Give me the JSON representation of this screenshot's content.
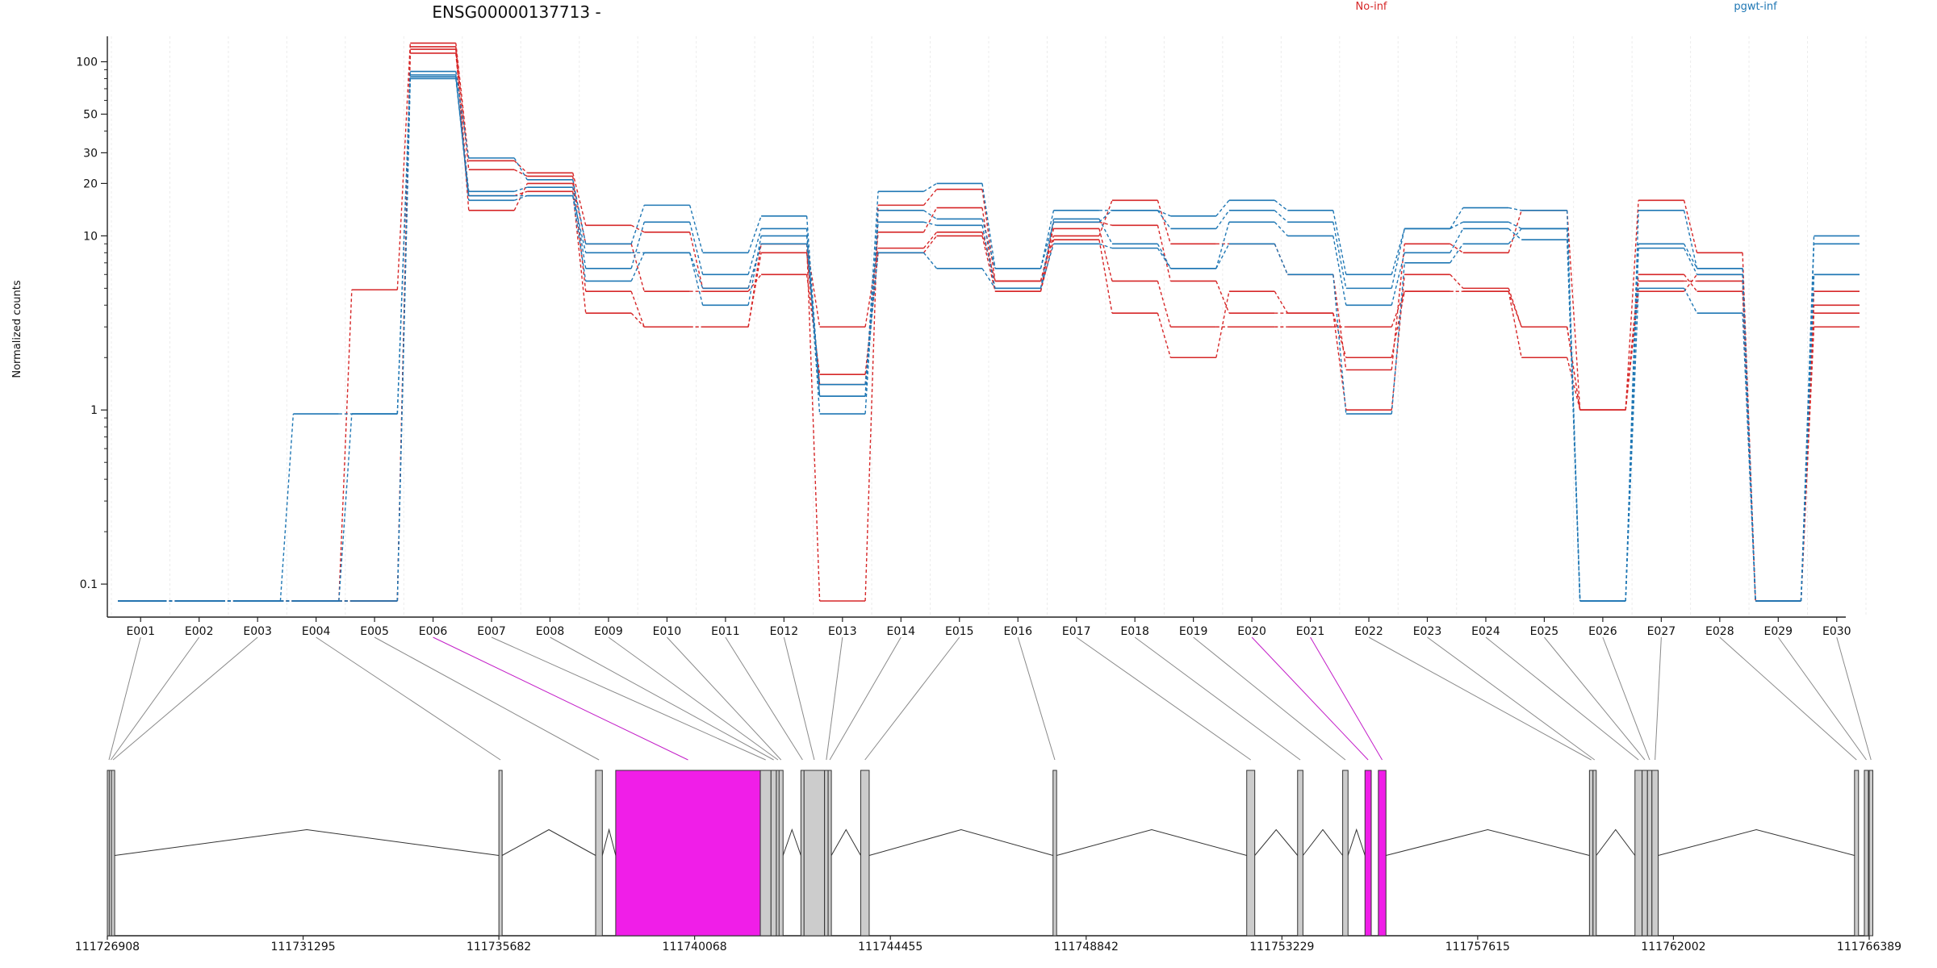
{
  "chart_data": {
    "type": "line",
    "title": "ENSG00000137713 -",
    "ylabel": "Normalized counts",
    "y_scale": "log",
    "y_ticks": [
      0.1,
      1,
      10,
      20,
      30,
      50,
      100
    ],
    "y_tick_labels": [
      "0.1",
      "1",
      "10",
      "20",
      "30",
      "50",
      "100"
    ],
    "ylim": [
      0.08,
      140
    ],
    "grid": "vertical",
    "legend": [
      {
        "name": "No-inf",
        "color": "#d62728"
      },
      {
        "name": "pgwt-inf",
        "color": "#1f77b4"
      }
    ],
    "categories": [
      "E001",
      "E002",
      "E003",
      "E004",
      "E005",
      "E006",
      "E007",
      "E008",
      "E009",
      "E010",
      "E011",
      "E012",
      "E013",
      "E014",
      "E015",
      "E016",
      "E017",
      "E018",
      "E019",
      "E020",
      "E021",
      "E022",
      "E023",
      "E024",
      "E025",
      "E026",
      "E027",
      "E028",
      "E029",
      "E030"
    ],
    "highlighted_exons": [
      "E006",
      "E020",
      "E021"
    ],
    "series": [
      {
        "group": "No-inf",
        "color": "#d62728",
        "values": [
          0.08,
          0.08,
          0.08,
          0.08,
          4.9,
          128,
          27,
          23,
          11.5,
          10.5,
          5.0,
          9.0,
          0.08,
          15.0,
          18.5,
          5.5,
          10.0,
          16.0,
          9.0,
          9.0,
          6.0,
          1.7,
          9.0,
          8.0,
          14.0,
          1.0,
          16.0,
          8.0,
          0.08,
          4.8
        ]
      },
      {
        "group": "No-inf",
        "color": "#d62728",
        "values": [
          0.08,
          0.08,
          0.08,
          0.08,
          0.08,
          122,
          24,
          22,
          4.8,
          3.0,
          3.0,
          8.0,
          1.4,
          10.5,
          14.5,
          4.8,
          12.0,
          11.5,
          5.5,
          3.6,
          3.6,
          1.0,
          6.0,
          5.0,
          3.0,
          1.0,
          6.0,
          4.8,
          0.08,
          4.0
        ]
      },
      {
        "group": "No-inf",
        "color": "#d62728",
        "values": [
          0.08,
          0.08,
          0.08,
          0.08,
          0.08,
          118,
          14,
          20,
          9.0,
          4.8,
          4.8,
          6.0,
          1.6,
          8.0,
          10.0,
          4.8,
          9.5,
          3.6,
          2.0,
          4.8,
          3.6,
          2.0,
          4.8,
          4.8,
          2.0,
          1.0,
          4.8,
          6.0,
          0.08,
          3.0
        ]
      },
      {
        "group": "No-inf",
        "color": "#d62728",
        "values": [
          0.08,
          0.08,
          0.08,
          0.08,
          0.08,
          112,
          17,
          18,
          3.6,
          3.0,
          3.0,
          9.0,
          3.0,
          8.5,
          10.5,
          5.5,
          11.0,
          5.5,
          3.0,
          3.0,
          3.0,
          3.0,
          4.8,
          4.8,
          3.0,
          1.0,
          5.5,
          5.5,
          0.08,
          3.6
        ]
      },
      {
        "group": "pgwt-inf",
        "color": "#1f77b4",
        "values": [
          0.08,
          0.08,
          0.08,
          0.95,
          0.95,
          88,
          28,
          21,
          9.0,
          15.0,
          8.0,
          13.0,
          1.2,
          18.0,
          20.0,
          6.5,
          14.0,
          14.0,
          13.0,
          16.0,
          14.0,
          6.0,
          11.0,
          14.5,
          14.0,
          0.08,
          14.0,
          6.5,
          0.08,
          10.0
        ]
      },
      {
        "group": "pgwt-inf",
        "color": "#1f77b4",
        "values": [
          0.08,
          0.08,
          0.08,
          0.08,
          0.95,
          82,
          18,
          19,
          6.5,
          12.0,
          6.0,
          11.0,
          0.95,
          14.0,
          12.5,
          6.5,
          12.0,
          14.0,
          11.0,
          14.0,
          12.0,
          5.0,
          11.0,
          12.0,
          11.0,
          0.08,
          9.0,
          6.5,
          0.08,
          9.0
        ]
      },
      {
        "group": "pgwt-inf",
        "color": "#1f77b4",
        "values": [
          0.08,
          0.08,
          0.08,
          0.08,
          0.08,
          80,
          17,
          17,
          8.0,
          8.0,
          4.0,
          10.0,
          1.2,
          12.0,
          11.5,
          5.0,
          12.5,
          9.0,
          6.5,
          12.0,
          10.0,
          4.0,
          8.0,
          11.0,
          9.5,
          0.08,
          8.5,
          6.0,
          0.08,
          6.0
        ]
      },
      {
        "group": "pgwt-inf",
        "color": "#1f77b4",
        "values": [
          0.08,
          0.08,
          0.08,
          0.08,
          0.08,
          84,
          16,
          17,
          5.5,
          8.0,
          5.0,
          9.0,
          1.4,
          8.0,
          6.5,
          5.0,
          9.0,
          8.5,
          6.5,
          9.0,
          6.0,
          0.95,
          7.0,
          9.0,
          11.0,
          0.08,
          5.0,
          3.6,
          0.08,
          6.0
        ]
      }
    ],
    "gene_model": {
      "genomic_ticks": [
        "111726908",
        "111731295",
        "111735682",
        "111740068",
        "111744455",
        "111748842",
        "111753229",
        "111757615",
        "111762002",
        "111766389"
      ],
      "exons": [
        {
          "id": "E001",
          "start": 111726908,
          "end": 111726950,
          "highlight": false
        },
        {
          "id": "E002",
          "start": 111726950,
          "end": 111727000,
          "highlight": false
        },
        {
          "id": "E003",
          "start": 111727000,
          "end": 111727040,
          "highlight": false
        },
        {
          "id": "E004",
          "start": 111735682,
          "end": 111735720,
          "highlight": false
        },
        {
          "id": "E005",
          "start": 111737850,
          "end": 111738000,
          "highlight": false
        },
        {
          "id": "E006",
          "start": 111738300,
          "end": 111741540,
          "highlight": true
        },
        {
          "id": "E007",
          "start": 111741540,
          "end": 111741780,
          "highlight": false
        },
        {
          "id": "E008",
          "start": 111741780,
          "end": 111741900,
          "highlight": false
        },
        {
          "id": "E009",
          "start": 111741900,
          "end": 111741960,
          "highlight": false
        },
        {
          "id": "E010",
          "start": 111741960,
          "end": 111742050,
          "highlight": false
        },
        {
          "id": "E011",
          "start": 111742450,
          "end": 111742520,
          "highlight": false
        },
        {
          "id": "E012",
          "start": 111742520,
          "end": 111742980,
          "highlight": false
        },
        {
          "id": "E013",
          "start": 111742980,
          "end": 111743060,
          "highlight": false
        },
        {
          "id": "E014",
          "start": 111743060,
          "end": 111743100,
          "highlight": false
        },
        {
          "id": "E015",
          "start": 111743790,
          "end": 111743980,
          "highlight": false
        },
        {
          "id": "E016",
          "start": 111748100,
          "end": 111748180,
          "highlight": false
        },
        {
          "id": "E017",
          "start": 111752440,
          "end": 111752620,
          "highlight": false
        },
        {
          "id": "E018",
          "start": 111753580,
          "end": 111753700,
          "highlight": false
        },
        {
          "id": "E019",
          "start": 111754590,
          "end": 111754710,
          "highlight": false
        },
        {
          "id": "E020",
          "start": 111755090,
          "end": 111755230,
          "highlight": true
        },
        {
          "id": "E021",
          "start": 111755390,
          "end": 111755560,
          "highlight": true
        },
        {
          "id": "E022",
          "start": 111760120,
          "end": 111760200,
          "highlight": false
        },
        {
          "id": "E023",
          "start": 111760200,
          "end": 111760270,
          "highlight": false
        },
        {
          "id": "E024",
          "start": 111761140,
          "end": 111761300,
          "highlight": false
        },
        {
          "id": "E025",
          "start": 111761300,
          "end": 111761420,
          "highlight": false
        },
        {
          "id": "E026",
          "start": 111761420,
          "end": 111761520,
          "highlight": false
        },
        {
          "id": "E027",
          "start": 111761520,
          "end": 111761660,
          "highlight": false
        },
        {
          "id": "E028",
          "start": 111766060,
          "end": 111766150,
          "highlight": false
        },
        {
          "id": "E029",
          "start": 111766280,
          "end": 111766370,
          "highlight": false
        },
        {
          "id": "E030",
          "start": 111766389,
          "end": 111766470,
          "highlight": false
        }
      ]
    }
  }
}
